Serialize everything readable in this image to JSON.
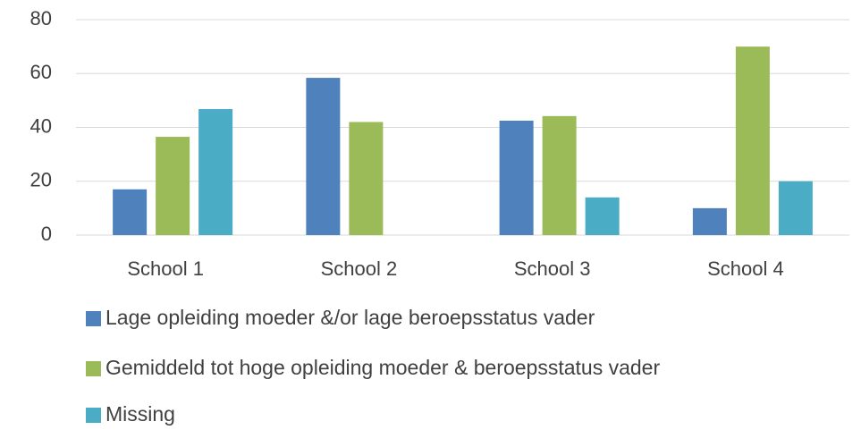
{
  "chart_data": {
    "type": "bar",
    "categories": [
      "School 1",
      "School 2",
      "School 3",
      "School 4"
    ],
    "series": [
      {
        "name": "Lage opleiding moeder &/or lage beroepsstatus vader",
        "color": "#4f81bd",
        "values": [
          17,
          58.4,
          42.5,
          10
        ]
      },
      {
        "name": "Gemiddeld tot hoge opleiding moeder & beroepsstatus vader",
        "color": "#9bbb59",
        "values": [
          36.5,
          42,
          44.2,
          70
        ]
      },
      {
        "name": "Missing",
        "color": "#4bacc6",
        "values": [
          46.8,
          null,
          14,
          20
        ]
      }
    ],
    "ylim": [
      0,
      80
    ],
    "yticks": [
      0,
      20,
      40,
      60,
      80
    ],
    "grid": true,
    "legend": "bottom"
  }
}
